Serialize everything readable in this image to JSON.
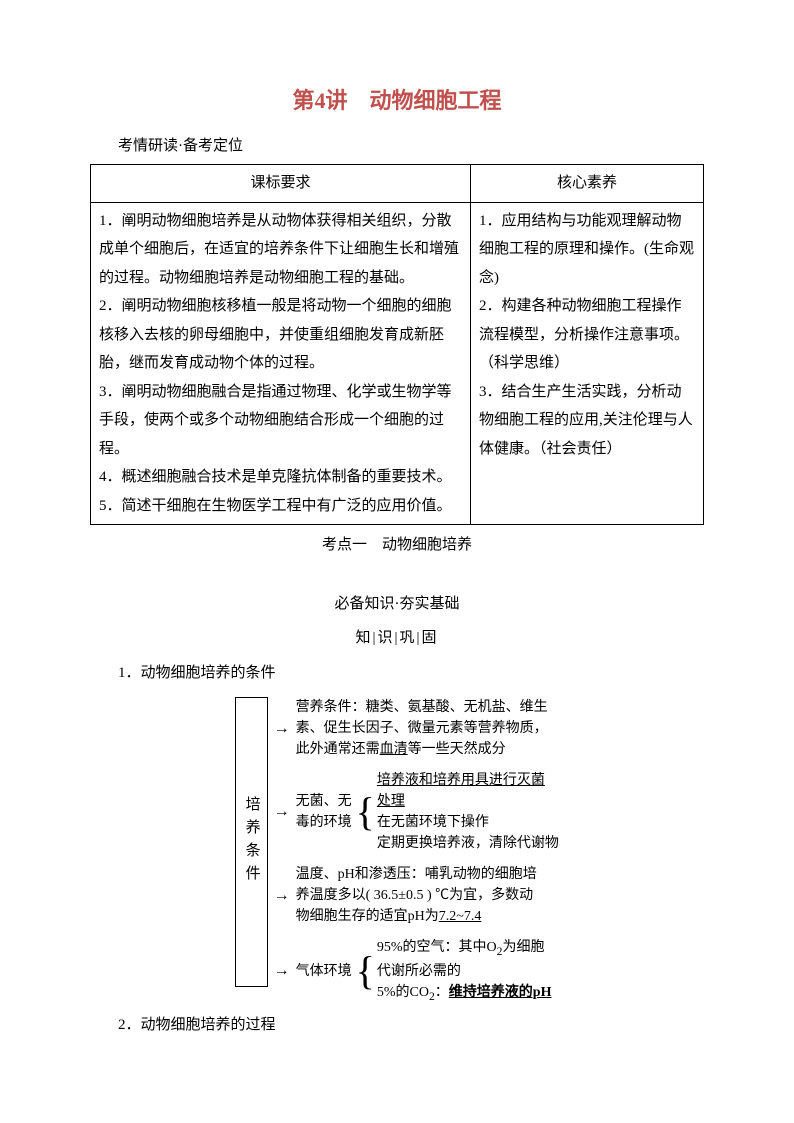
{
  "title_color": "#c0504d",
  "title": "第4讲　动物细胞工程",
  "subtitle": "考情研读·备考定位",
  "table": {
    "headers": [
      "课标要求",
      "核心素养"
    ],
    "left": "1．阐明动物细胞培养是从动物体获得相关组织，分散成单个细胞后，在适宜的培养条件下让细胞生长和增殖的过程。动物细胞培养是动物细胞工程的基础。\n2．阐明动物细胞核移植一般是将动物一个细胞的细胞核移入去核的卵母细胞中，并使重组细胞发育成新胚胎，继而发育成动物个体的过程。\n3．阐明动物细胞融合是指通过物理、化学或生物学等手段，使两个或多个动物细胞结合形成一个细胞的过程。\n4．概述细胞融合技术是单克隆抗体制备的重要技术。\n5．简述干细胞在生物医学工程中有广泛的应用价值。",
    "right": "1．应用结构与功能观理解动物细胞工程的原理和操作。(生命观念)\n2．构建各种动物细胞工程操作流程模型，分析操作注意事项。（科学思维）\n3．结合生产生活实践，分析动物细胞工程的应用,关注伦理与人体健康。（社会责任）"
  },
  "section1": "考点一　动物细胞培养",
  "section2": "必备知识·夯实基础",
  "section3": "知|识|巩|固",
  "para1": "1．动物细胞培养的条件",
  "para2": "2．动物细胞培养的过程",
  "diagram": {
    "block_label": "培养条件",
    "b1": {
      "lines": [
        "营养条件：糖类、氨基酸、无机盐、维生",
        "素、促生长因子、微量元素等营养物质，",
        "此外通常还需"
      ],
      "underlined": "血清",
      "tail": "等一些天然成分"
    },
    "b2": {
      "label1": "无菌、无",
      "label2": "毒的环境",
      "l1_u": "培养液和培养用具进行灭菌",
      "l1_tail": "处理",
      "l2": "在无菌环境下操作",
      "l3": "定期更换培养液，清除代谢物"
    },
    "b3": {
      "l1": "温度、pH和渗透压：哺乳动物的细胞培",
      "l2": "养温度多以( 36.5±0.5 ) ℃为宜，多数动",
      "l3a": "物细胞生存的适宜pH为",
      "l3_u": "7.2~7.4"
    },
    "b4": {
      "label": "气体环境",
      "l1a": "95%的空气：其中O",
      "l1b": "为细胞",
      "l2": "代谢所必需的",
      "l3a": "5%的CO",
      "l3b": "：",
      "l3_u": "维持培养液的pH"
    }
  }
}
